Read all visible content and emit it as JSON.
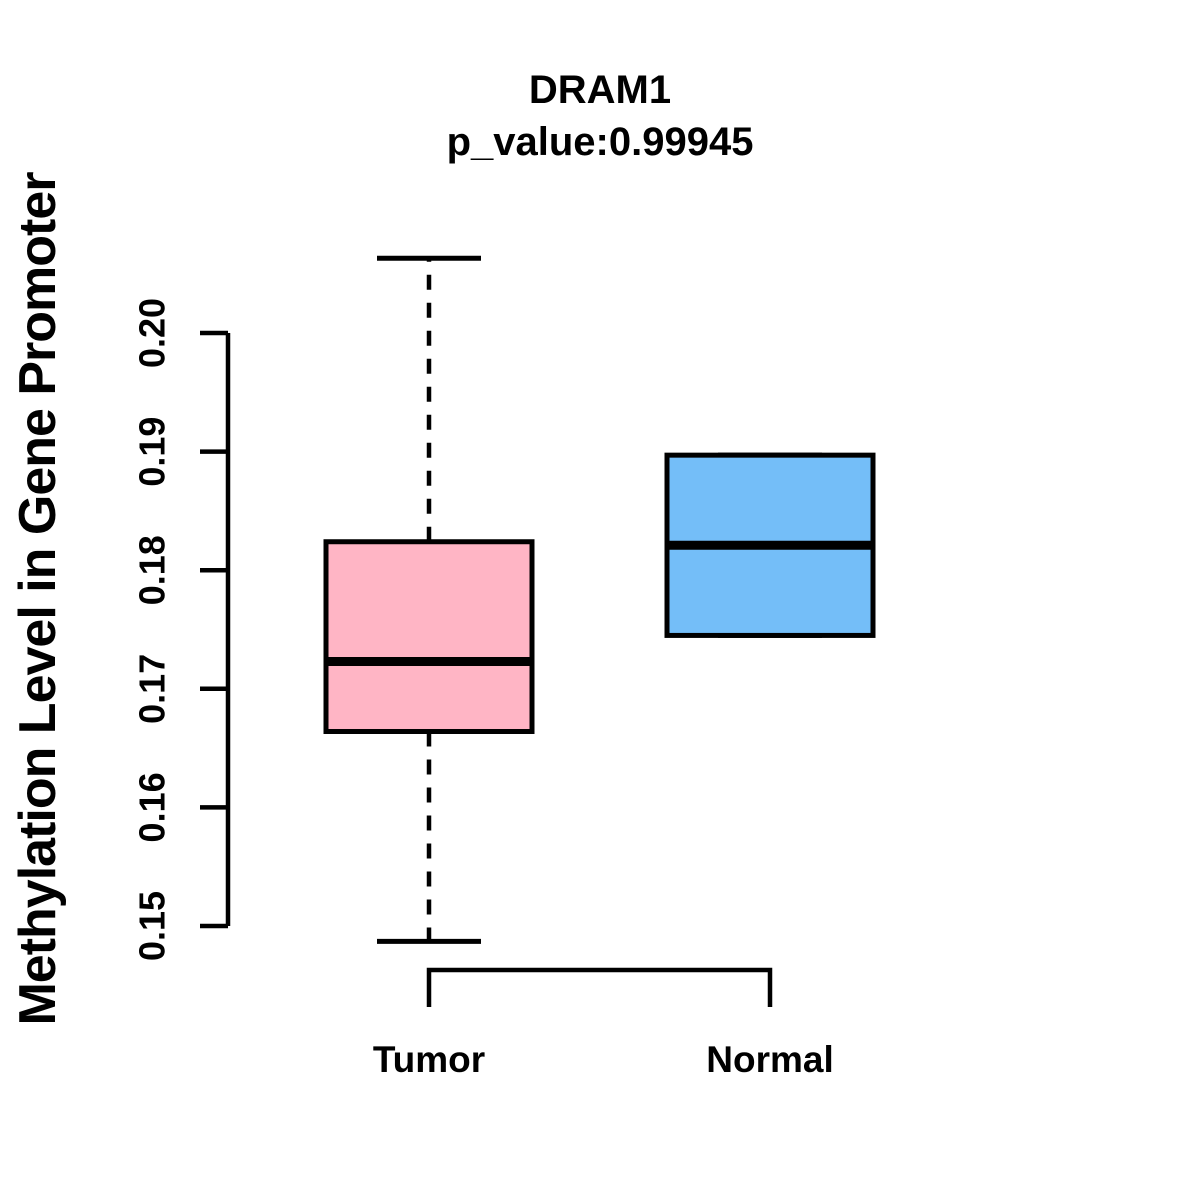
{
  "chart_data": {
    "type": "boxplot",
    "title": "DRAM1",
    "subtitle": "p_value:0.99945",
    "ylabel": "Methylation Level in Gene Promoter",
    "xlabel": "",
    "background_color": "#FFFFFF",
    "line_color": "#000000",
    "y_axis": {
      "ticks": [
        0.15,
        0.16,
        0.17,
        0.18,
        0.19,
        0.2
      ],
      "tick_labels": [
        "0.15",
        "0.16",
        "0.17",
        "0.18",
        "0.19",
        "0.20"
      ],
      "tick_labels_rotated": true,
      "range": [
        0.148,
        0.207
      ],
      "grid": false
    },
    "categories": [
      "Tumor",
      "Normal"
    ],
    "groups": [
      {
        "label": "Tumor",
        "color": "#FFB5C5",
        "whisker_low": 0.1487,
        "q1": 0.1664,
        "median": 0.1723,
        "q3": 0.1824,
        "whisker_high": 0.2063
      },
      {
        "label": "Normal",
        "color": "#74BEF8",
        "whisker_low": 0.1745,
        "q1": 0.1745,
        "median": 0.1821,
        "q3": 0.1897,
        "whisker_high": 0.1897
      }
    ],
    "legend": null
  }
}
